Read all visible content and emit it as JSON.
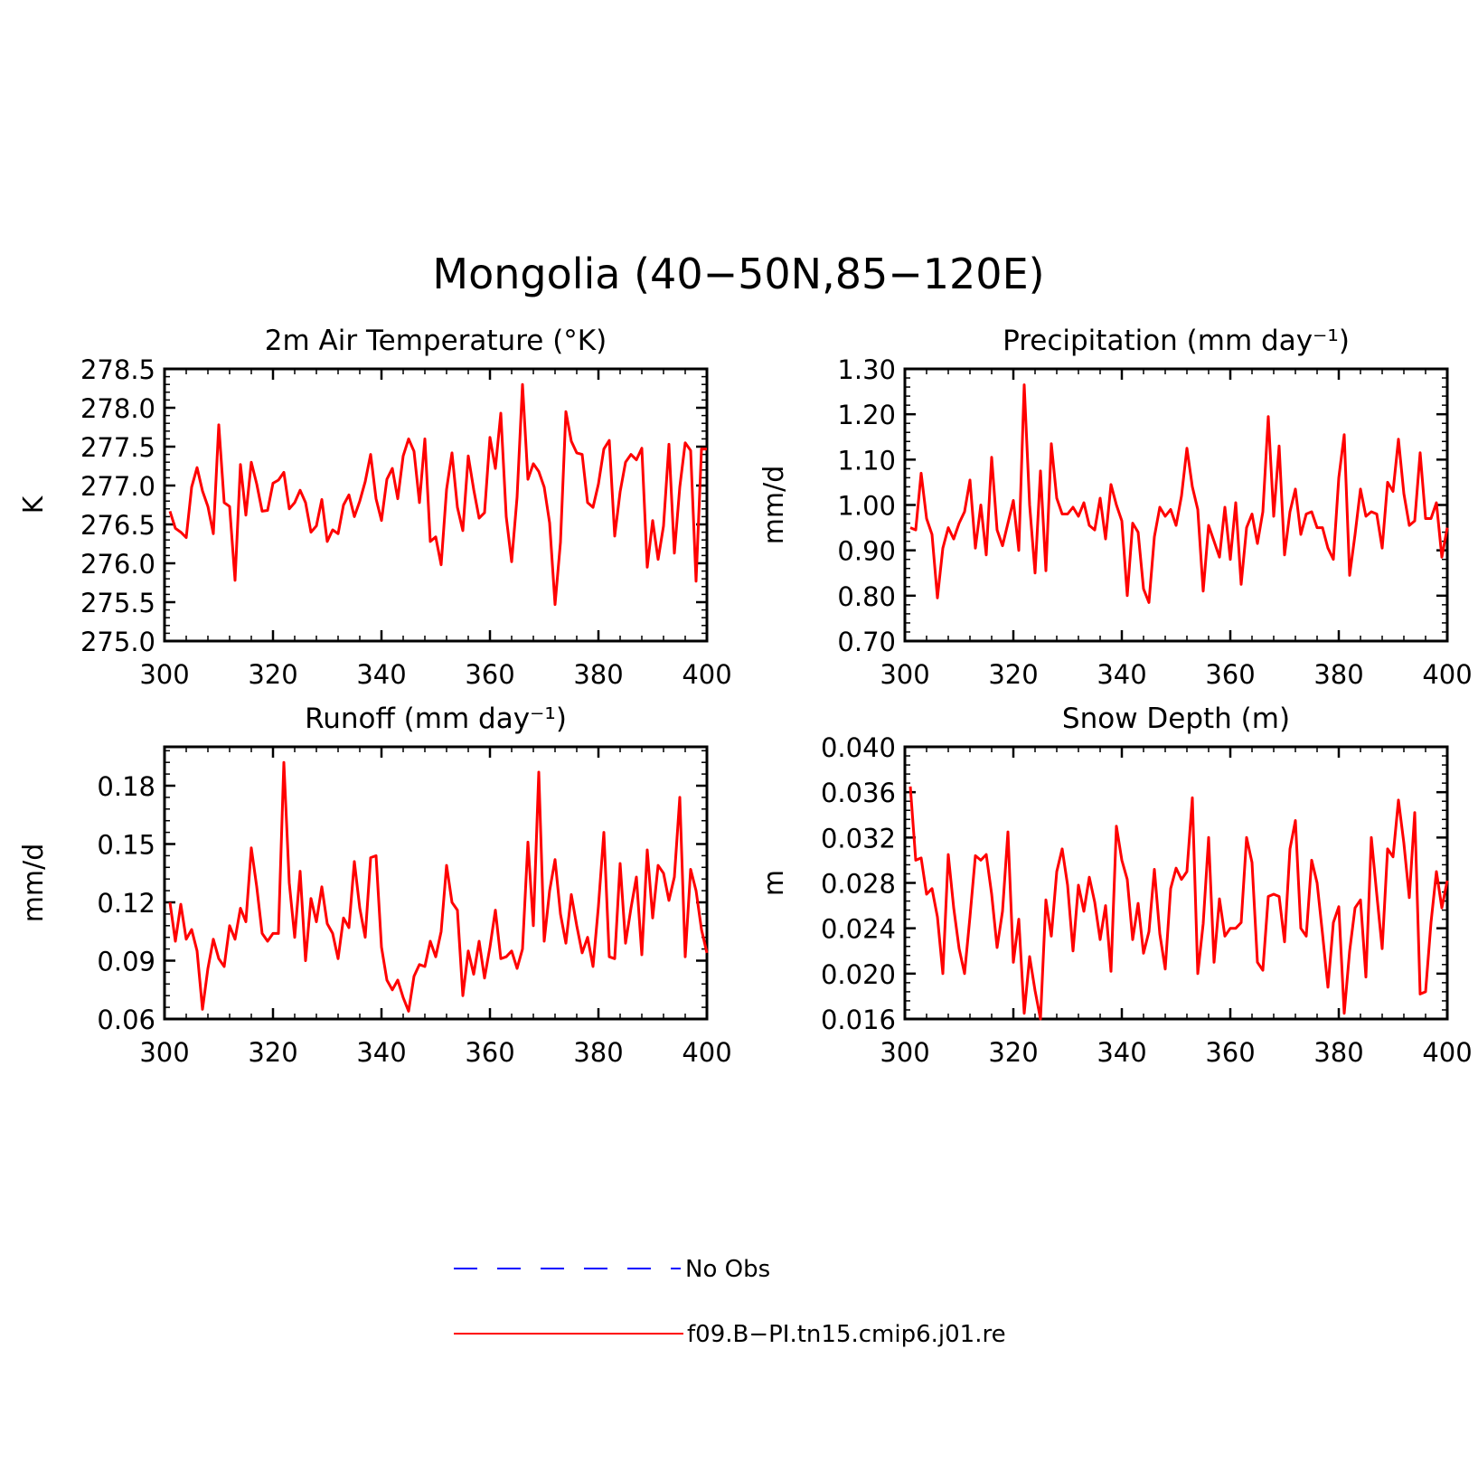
{
  "figure": {
    "title": "Mongolia (40−50N,85−120E)"
  },
  "legend": {
    "items": [
      {
        "label": "No Obs",
        "color": "#0000ff",
        "dash": true
      },
      {
        "label": "f09.B−PI.tn15.cmip6.j01.re",
        "color": "#ff0000",
        "dash": false
      }
    ]
  },
  "chart_data": [
    {
      "type": "line",
      "title": "2m Air Temperature (°K)",
      "ylabel": "K",
      "xlim": [
        300,
        400
      ],
      "ylim": [
        275.0,
        278.5
      ],
      "xticks": [
        300,
        320,
        340,
        360,
        380,
        400
      ],
      "xtick_labels": [
        "300",
        "320",
        "340",
        "360",
        "380",
        "400"
      ],
      "yticks": [
        275.0,
        275.5,
        276.0,
        276.5,
        277.0,
        277.5,
        278.0,
        278.5
      ],
      "ytick_labels": [
        "275.0",
        "275.5",
        "276.0",
        "276.5",
        "277.0",
        "277.5",
        "278.0",
        "278.5"
      ],
      "color": "#ff0000",
      "x_start": 301,
      "x_step": 1,
      "values": [
        276.67,
        276.45,
        276.4,
        276.33,
        276.98,
        277.23,
        276.93,
        276.73,
        276.38,
        277.78,
        276.78,
        276.73,
        275.78,
        277.27,
        276.62,
        277.3,
        277.02,
        276.67,
        276.68,
        277.03,
        277.07,
        277.17,
        276.7,
        276.78,
        276.94,
        276.78,
        276.4,
        276.48,
        276.82,
        276.28,
        276.43,
        276.38,
        276.75,
        276.88,
        276.6,
        276.8,
        277.05,
        277.4,
        276.83,
        276.55,
        277.08,
        277.22,
        276.83,
        277.38,
        277.6,
        277.44,
        276.78,
        277.6,
        276.28,
        276.34,
        275.98,
        276.95,
        277.42,
        276.72,
        276.42,
        277.38,
        276.95,
        276.58,
        276.65,
        277.62,
        277.22,
        277.93,
        276.6,
        276.02,
        276.85,
        278.3,
        277.08,
        277.28,
        277.18,
        276.98,
        276.52,
        275.47,
        276.27,
        277.95,
        277.57,
        277.42,
        277.4,
        276.78,
        276.72,
        277.02,
        277.47,
        277.58,
        276.35,
        276.92,
        277.3,
        277.4,
        277.33,
        277.48,
        275.95,
        276.55,
        276.05,
        276.48,
        277.53,
        276.13,
        276.98,
        277.55,
        277.45,
        275.77,
        277.47,
        277.47
      ]
    },
    {
      "type": "line",
      "title": "Precipitation (mm day⁻¹)",
      "ylabel": "mm/d",
      "xlim": [
        300,
        400
      ],
      "ylim": [
        0.7,
        1.3
      ],
      "xticks": [
        300,
        320,
        340,
        360,
        380,
        400
      ],
      "xtick_labels": [
        "300",
        "320",
        "340",
        "360",
        "380",
        "400"
      ],
      "yticks": [
        0.7,
        0.8,
        0.9,
        1.0,
        1.1,
        1.2,
        1.3
      ],
      "ytick_labels": [
        "0.70",
        "0.80",
        "0.90",
        "1.00",
        "1.10",
        "1.20",
        "1.30"
      ],
      "color": "#ff0000",
      "x_start": 301,
      "x_step": 1,
      "values": [
        0.95,
        0.945,
        1.07,
        0.97,
        0.935,
        0.795,
        0.905,
        0.95,
        0.925,
        0.96,
        0.985,
        1.055,
        0.905,
        1.0,
        0.89,
        1.105,
        0.945,
        0.91,
        0.96,
        1.01,
        0.9,
        1.265,
        1.0,
        0.85,
        1.075,
        0.855,
        1.135,
        1.015,
        0.98,
        0.98,
        0.995,
        0.975,
        1.005,
        0.955,
        0.945,
        1.015,
        0.925,
        1.045,
        1.0,
        0.965,
        0.8,
        0.96,
        0.94,
        0.815,
        0.785,
        0.93,
        0.995,
        0.975,
        0.99,
        0.955,
        1.02,
        1.125,
        1.04,
        0.99,
        0.81,
        0.955,
        0.92,
        0.885,
        0.995,
        0.88,
        1.005,
        0.825,
        0.95,
        0.98,
        0.915,
        0.985,
        1.195,
        0.975,
        1.13,
        0.89,
        0.985,
        1.035,
        0.935,
        0.98,
        0.985,
        0.95,
        0.95,
        0.905,
        0.88,
        1.06,
        1.155,
        0.845,
        0.935,
        1.035,
        0.975,
        0.985,
        0.98,
        0.905,
        1.05,
        1.03,
        1.145,
        1.025,
        0.955,
        0.965,
        1.115,
        0.97,
        0.97,
        1.005,
        0.885,
        0.95
      ]
    },
    {
      "type": "line",
      "title": "Runoff (mm day⁻¹)",
      "ylabel": "mm/d",
      "xlim": [
        300,
        400
      ],
      "ylim": [
        0.06,
        0.2
      ],
      "xticks": [
        300,
        320,
        340,
        360,
        380,
        400
      ],
      "xtick_labels": [
        "300",
        "320",
        "340",
        "360",
        "380",
        "400"
      ],
      "yticks": [
        0.06,
        0.09,
        0.12,
        0.15,
        0.18
      ],
      "ytick_labels": [
        "0.06",
        "0.09",
        "0.12",
        "0.15",
        "0.18"
      ],
      "color": "#ff0000",
      "x_start": 301,
      "x_step": 1,
      "values": [
        0.12,
        0.1,
        0.119,
        0.101,
        0.106,
        0.095,
        0.065,
        0.086,
        0.101,
        0.091,
        0.087,
        0.108,
        0.101,
        0.117,
        0.11,
        0.148,
        0.128,
        0.104,
        0.1,
        0.104,
        0.104,
        0.192,
        0.13,
        0.102,
        0.136,
        0.09,
        0.122,
        0.11,
        0.128,
        0.109,
        0.104,
        0.091,
        0.112,
        0.107,
        0.141,
        0.117,
        0.102,
        0.143,
        0.144,
        0.097,
        0.08,
        0.075,
        0.08,
        0.071,
        0.064,
        0.082,
        0.088,
        0.087,
        0.1,
        0.092,
        0.105,
        0.139,
        0.12,
        0.116,
        0.072,
        0.095,
        0.083,
        0.1,
        0.081,
        0.097,
        0.116,
        0.091,
        0.092,
        0.095,
        0.086,
        0.096,
        0.151,
        0.108,
        0.187,
        0.1,
        0.126,
        0.142,
        0.114,
        0.099,
        0.124,
        0.108,
        0.094,
        0.102,
        0.087,
        0.118,
        0.156,
        0.092,
        0.091,
        0.14,
        0.099,
        0.117,
        0.133,
        0.093,
        0.147,
        0.112,
        0.139,
        0.135,
        0.121,
        0.133,
        0.174,
        0.092,
        0.137,
        0.126,
        0.106,
        0.094
      ]
    },
    {
      "type": "line",
      "title": "Snow Depth (m)",
      "ylabel": "m",
      "xlim": [
        300,
        400
      ],
      "ylim": [
        0.016,
        0.04
      ],
      "xticks": [
        300,
        320,
        340,
        360,
        380,
        400
      ],
      "xtick_labels": [
        "300",
        "320",
        "340",
        "360",
        "380",
        "400"
      ],
      "yticks": [
        0.016,
        0.02,
        0.024,
        0.028,
        0.032,
        0.036,
        0.04
      ],
      "ytick_labels": [
        "0.016",
        "0.020",
        "0.024",
        "0.028",
        "0.032",
        "0.036",
        "0.040"
      ],
      "color": "#ff0000",
      "x_start": 301,
      "x_step": 1,
      "values": [
        0.0365,
        0.03,
        0.0302,
        0.027,
        0.0275,
        0.025,
        0.02,
        0.0305,
        0.0258,
        0.0222,
        0.02,
        0.025,
        0.0304,
        0.03,
        0.0305,
        0.027,
        0.0223,
        0.0255,
        0.0325,
        0.021,
        0.0248,
        0.0165,
        0.0215,
        0.0185,
        0.016,
        0.0265,
        0.0233,
        0.029,
        0.031,
        0.0278,
        0.022,
        0.0278,
        0.0255,
        0.0285,
        0.0263,
        0.023,
        0.026,
        0.0202,
        0.033,
        0.03,
        0.0283,
        0.023,
        0.0262,
        0.0218,
        0.0237,
        0.0292,
        0.0235,
        0.0204,
        0.0275,
        0.0293,
        0.0283,
        0.029,
        0.0355,
        0.02,
        0.0244,
        0.032,
        0.021,
        0.0266,
        0.0233,
        0.024,
        0.024,
        0.0245,
        0.032,
        0.0298,
        0.021,
        0.0203,
        0.0268,
        0.027,
        0.0268,
        0.0228,
        0.031,
        0.0335,
        0.024,
        0.0233,
        0.03,
        0.028,
        0.0235,
        0.0188,
        0.0245,
        0.0259,
        0.0165,
        0.022,
        0.0258,
        0.0265,
        0.0197,
        0.032,
        0.027,
        0.0222,
        0.031,
        0.0303,
        0.0353,
        0.0315,
        0.0267,
        0.0342,
        0.0182,
        0.0184,
        0.0245,
        0.029,
        0.0258,
        0.0282
      ]
    }
  ]
}
